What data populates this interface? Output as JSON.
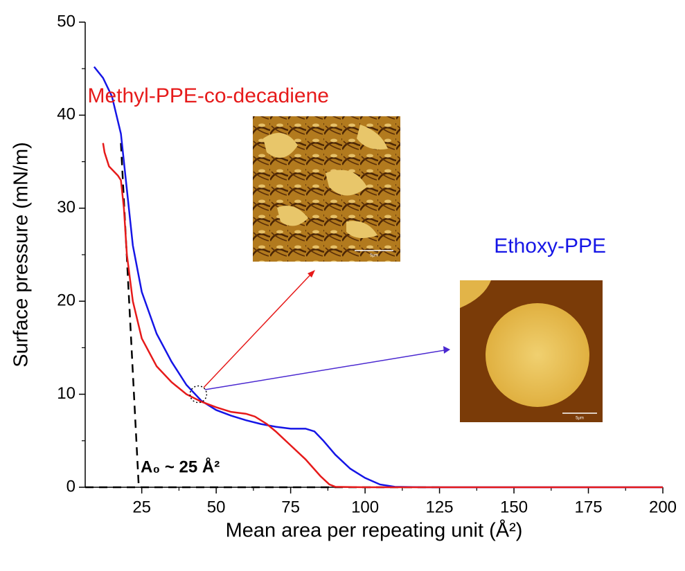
{
  "chart_data": {
    "type": "line",
    "xlabel": "Mean area per repeating unit (Å²)",
    "ylabel": "Surface pressure (mN/m)",
    "xlim": [
      6,
      200
    ],
    "ylim": [
      0,
      50
    ],
    "xticks": [
      25,
      50,
      75,
      100,
      125,
      150,
      175,
      200
    ],
    "yticks": [
      0,
      10,
      20,
      30,
      40,
      50
    ],
    "series": [
      {
        "name": "Ethoxy-PPE",
        "color": "#1515e6",
        "x": [
          9,
          12,
          15,
          18,
          20,
          22,
          25,
          30,
          35,
          40,
          45,
          50,
          55,
          60,
          65,
          70,
          75,
          80,
          83,
          86,
          90,
          95,
          100,
          105,
          110,
          120,
          200
        ],
        "values": [
          45.2,
          44,
          42,
          38,
          32,
          26,
          21,
          16.5,
          13.5,
          11,
          9.3,
          8.3,
          7.7,
          7.2,
          6.8,
          6.5,
          6.3,
          6.3,
          6,
          5,
          3.5,
          2,
          1,
          0.3,
          0.05,
          0,
          0
        ]
      },
      {
        "name": "Methyl-PPE-co-decadiene",
        "color": "#e61a1a",
        "x": [
          12,
          12.5,
          14,
          17,
          18,
          19,
          20,
          22,
          25,
          30,
          35,
          40,
          45,
          50,
          55,
          60,
          63,
          67,
          70,
          75,
          80,
          85,
          88,
          90,
          100,
          200
        ],
        "values": [
          37,
          36,
          34.5,
          33.5,
          33,
          30,
          25,
          20,
          16,
          13,
          11.3,
          10,
          9.2,
          8.6,
          8.1,
          7.9,
          7.6,
          6.8,
          6,
          4.5,
          3,
          1.2,
          0.3,
          0.05,
          0,
          0
        ]
      }
    ],
    "tangent_line": {
      "x": [
        18,
        24
      ],
      "y": [
        37,
        0
      ]
    },
    "baseline": {
      "x": [
        6,
        125
      ],
      "y": [
        0,
        0
      ]
    },
    "annotation": "A₀ ~ 25 Å²",
    "inset_scale_labels": [
      "5μm",
      "5μm"
    ]
  }
}
